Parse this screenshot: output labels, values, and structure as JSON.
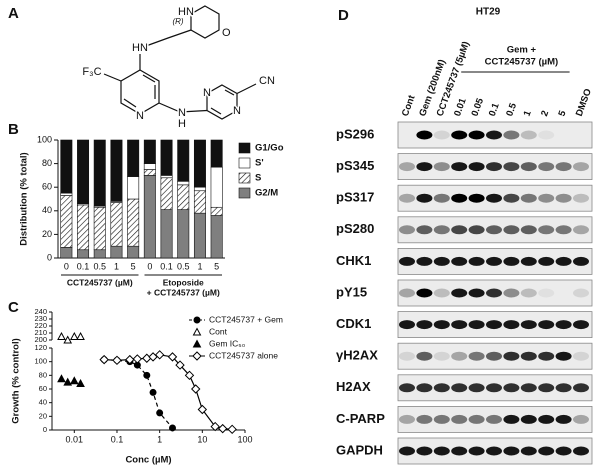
{
  "panel_labels": {
    "a": "A",
    "b": "B",
    "c": "C",
    "d": "D"
  },
  "structure": {
    "atoms": [
      "HN",
      "O",
      "(R)",
      "HN",
      "F₃C",
      "N",
      "N",
      "H",
      "N",
      "N",
      "CN"
    ]
  },
  "chart_data": [
    {
      "type": "bar",
      "stacked": true,
      "y_label": "Distribution (% total)",
      "categories": [
        "0",
        "0.1",
        "0.5",
        "1",
        "5",
        "0",
        "0.1",
        "0.5",
        "1",
        "5"
      ],
      "group_labels": [
        [
          "CCT245737 (µM)"
        ],
        [
          "Etoposide",
          "+ CCT245737 (µM)"
        ]
      ],
      "series": [
        {
          "name": "G2/M",
          "color": "#7f7f7f",
          "values": [
            9,
            7,
            7,
            10,
            10,
            70,
            41,
            41,
            38,
            36
          ]
        },
        {
          "name": "S",
          "color": "#ffffff",
          "hatch": true,
          "values": [
            44,
            38,
            36,
            37,
            40,
            5,
            27,
            21,
            19,
            7
          ]
        },
        {
          "name": "S'",
          "color": "#ffffff",
          "values": [
            2,
            1,
            1,
            1,
            19,
            5,
            2,
            3,
            3,
            34
          ]
        },
        {
          "name": "G1/Go",
          "color": "#111111",
          "values": [
            45,
            54,
            56,
            52,
            31,
            20,
            30,
            35,
            40,
            23
          ]
        }
      ],
      "ylim": [
        0,
        100
      ],
      "yticks": [
        0,
        20,
        40,
        60,
        80,
        100
      ],
      "legend": "right"
    },
    {
      "type": "line",
      "x_label": "Conc (µM)",
      "y_label": "Growth (% control)",
      "log_x": true,
      "xlim": [
        0.003,
        100
      ],
      "xticks": [
        0.01,
        0.1,
        1,
        10,
        100
      ],
      "ylim": [
        0,
        240
      ],
      "ybreak": [
        120,
        200
      ],
      "yticks": [
        0,
        20,
        40,
        60,
        80,
        100,
        120,
        200,
        210,
        220,
        230,
        240
      ],
      "legend": "upper right",
      "series": [
        {
          "name": "CCT245737 + Gem",
          "color": "#000000",
          "marker": "circle",
          "filled": true,
          "line": "dashed",
          "x": [
            0.05,
            0.1,
            0.2,
            0.3,
            0.5,
            0.7,
            1,
            2
          ],
          "values": [
            103,
            102,
            100,
            95,
            80,
            55,
            25,
            3
          ]
        },
        {
          "name": "Cont",
          "color": "#000000",
          "marker": "triangle",
          "filled": false,
          "line": "none",
          "x": [
            0.005,
            0.007,
            0.01,
            0.014
          ],
          "values": [
            205,
            200,
            205,
            205
          ]
        },
        {
          "name": "Gem IC₅₀",
          "color": "#000000",
          "marker": "triangle",
          "filled": true,
          "line": "none",
          "x": [
            0.005,
            0.007,
            0.01,
            0.014
          ],
          "values": [
            75,
            70,
            72,
            68
          ]
        },
        {
          "name": "CCT245737 alone",
          "color": "#000000",
          "marker": "diamond",
          "filled": false,
          "line": "solid",
          "x": [
            0.05,
            0.1,
            0.2,
            0.3,
            0.5,
            0.7,
            1,
            2,
            3,
            5,
            7,
            10,
            20,
            30,
            50
          ],
          "values": [
            103,
            102,
            103,
            104,
            105,
            107,
            110,
            107,
            95,
            80,
            60,
            30,
            5,
            2,
            1
          ]
        }
      ]
    }
  ],
  "blot": {
    "cell_line": "HT29",
    "lanes": [
      "Cont",
      "Gem (200nM)",
      "CCT245737 (5µM)",
      "0.01",
      "0.05",
      "0.1",
      "0.5",
      "1",
      "2",
      "5",
      "DMSO"
    ],
    "group_label": [
      "Gem +",
      "CCT245737 (µM)"
    ],
    "proteins": [
      {
        "name": "pS296",
        "bands": [
          0,
          1,
          0.1,
          1,
          1,
          0.9,
          0.5,
          0.2,
          0.05,
          0,
          0
        ]
      },
      {
        "name": "pS345",
        "bands": [
          0.3,
          0.9,
          0.4,
          0.9,
          0.9,
          0.8,
          0.7,
          0.6,
          0.5,
          0.5,
          0.3
        ]
      },
      {
        "name": "pS317",
        "bands": [
          0.3,
          0.9,
          0.5,
          1,
          1,
          0.9,
          0.7,
          0.5,
          0.4,
          0.4,
          0.2
        ]
      },
      {
        "name": "pS280",
        "bands": [
          0.4,
          0.6,
          0.5,
          0.7,
          0.7,
          0.6,
          0.6,
          0.6,
          0.5,
          0.5,
          0.3
        ]
      },
      {
        "name": "CHK1",
        "bands": [
          0.9,
          0.9,
          0.9,
          0.9,
          0.9,
          0.9,
          0.9,
          0.9,
          0.9,
          0.9,
          0.9
        ]
      },
      {
        "name": "pY15",
        "bands": [
          0.3,
          1,
          0.2,
          0.9,
          0.9,
          0.8,
          0.4,
          0.2,
          0.05,
          0,
          0.1
        ]
      },
      {
        "name": "CDK1",
        "bands": [
          0.9,
          0.9,
          0.9,
          0.9,
          0.9,
          0.9,
          0.9,
          0.9,
          0.9,
          0.9,
          0.9
        ]
      },
      {
        "name": "γH2AX",
        "bands": [
          0.1,
          0.6,
          0.1,
          0.3,
          0.5,
          0.6,
          0.8,
          0.8,
          0.8,
          0.9,
          0.1
        ]
      },
      {
        "name": "H2AX",
        "bands": [
          0.8,
          0.8,
          0.8,
          0.8,
          0.8,
          0.8,
          0.8,
          0.8,
          0.8,
          0.8,
          0.8
        ]
      },
      {
        "name": "C-PARP",
        "bands": [
          0.3,
          0.5,
          0.5,
          0.5,
          0.5,
          0.5,
          0.9,
          0.9,
          0.9,
          0.9,
          0.3
        ]
      },
      {
        "name": "GAPDH",
        "bands": [
          0.9,
          0.9,
          0.9,
          0.9,
          0.9,
          0.9,
          0.9,
          0.9,
          0.9,
          0.9,
          0.9
        ]
      }
    ]
  }
}
